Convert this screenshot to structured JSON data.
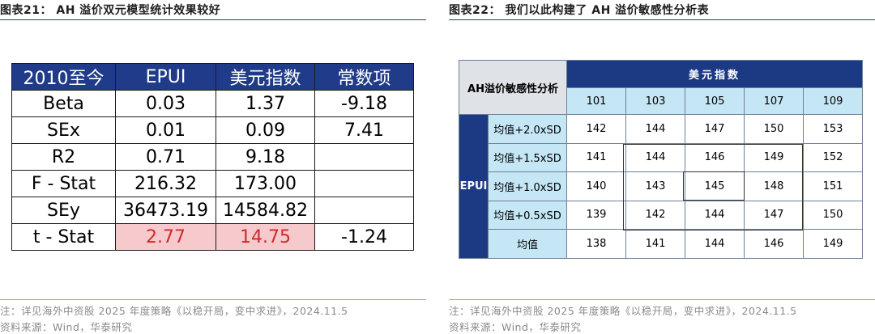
{
  "left": {
    "title": "图表21： AH 溢价双元模型统计效果较好",
    "headers": [
      "2010至今",
      "EPUI",
      "美元指数",
      "常数项"
    ],
    "rows": [
      {
        "label": "Beta",
        "epui": "0.03",
        "usd": "1.37",
        "const": "-9.18"
      },
      {
        "label": "SEx",
        "epui": "0.01",
        "usd": "0.09",
        "const": "7.41"
      },
      {
        "label": "R2",
        "epui": "0.71",
        "usd": "9.18",
        "const": ""
      },
      {
        "label": "F - Stat",
        "epui": "216.32",
        "usd": "173.00",
        "const": ""
      },
      {
        "label": "SEy",
        "epui": "36473.19",
        "usd": "14584.82",
        "const": ""
      },
      {
        "label": "t - Stat",
        "epui": "2.77",
        "usd": "14.75",
        "const": "-1.24"
      }
    ],
    "note": "注：详见海外中资股 2025 年度策略《以稳开局，变中求进》，2024.11.5",
    "source": "资料来源：Wind，华泰研究"
  },
  "right": {
    "title": "图表22： 我们以此构建了 AH 溢价敏感性分析表",
    "corner_label": "AH溢价敏感性分析",
    "usd_label": "美元指数",
    "epui_label": "EPUI",
    "usd_values": [
      "101",
      "103",
      "105",
      "107",
      "109"
    ],
    "rows": [
      {
        "label": "均值+2.0xSD",
        "values": [
          "142",
          "144",
          "147",
          "150",
          "153"
        ]
      },
      {
        "label": "均值+1.5xSD",
        "values": [
          "141",
          "144",
          "146",
          "149",
          "152"
        ]
      },
      {
        "label": "均值+1.0xSD",
        "values": [
          "140",
          "143",
          "145",
          "148",
          "151"
        ]
      },
      {
        "label": "均值+0.5xSD",
        "values": [
          "139",
          "142",
          "144",
          "147",
          "150"
        ]
      },
      {
        "label": "均值",
        "values": [
          "138",
          "141",
          "144",
          "146",
          "149"
        ]
      }
    ],
    "note": "注：详见海外中资股 2025 年度策略《以稳开局，变中求进》，2024.11.5",
    "source": "资料来源：Wind，华泰研究"
  },
  "colors": {
    "header_navy": "#1f3b8a",
    "highlight_pink": "#f6c9cd",
    "highlight_text": "#d02a2a",
    "light_blue": "#c5e6f5"
  }
}
